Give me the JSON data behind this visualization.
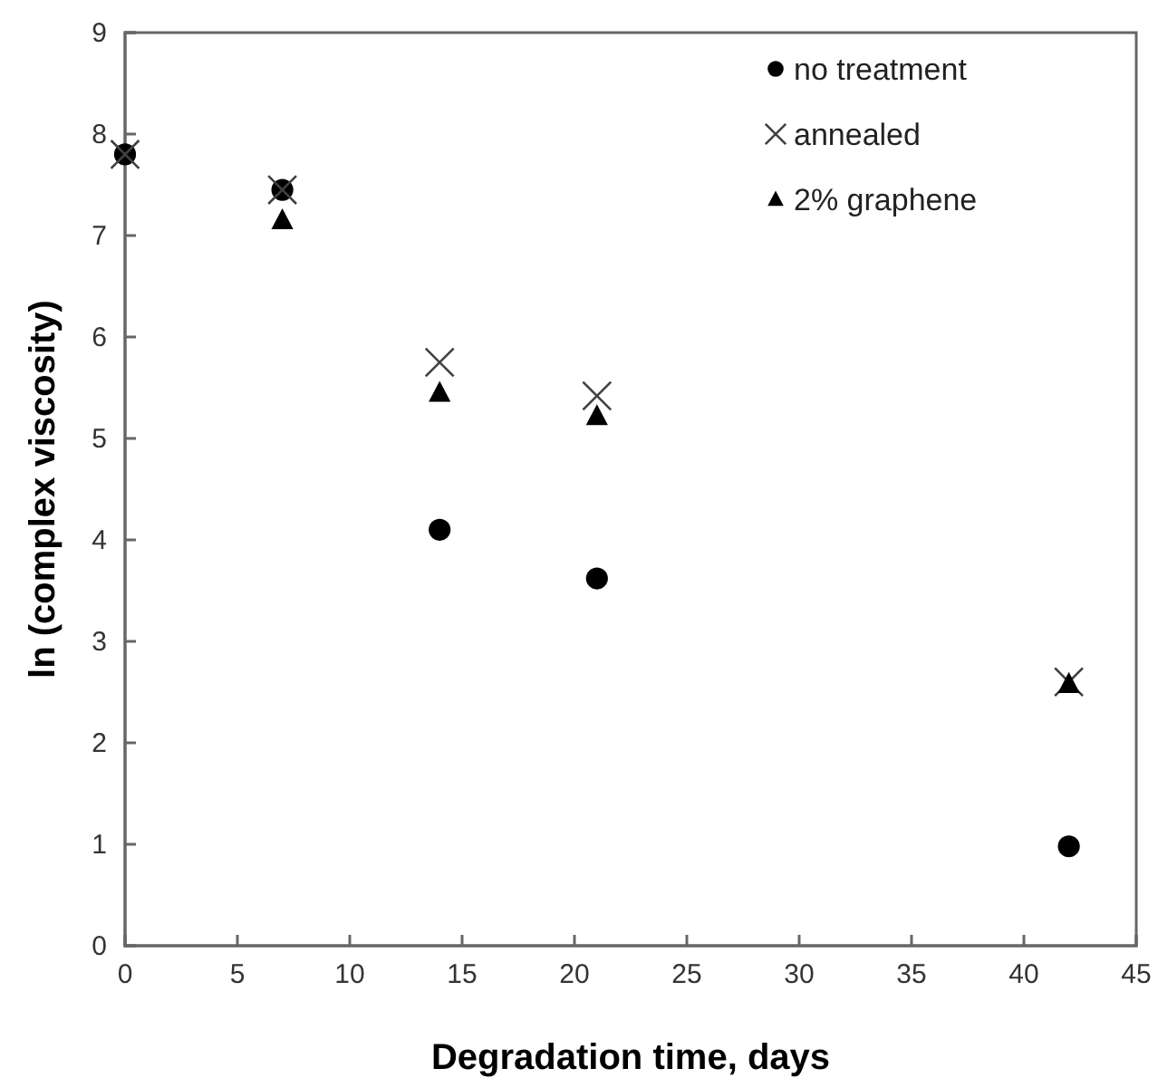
{
  "chart_data": {
    "type": "scatter",
    "xlabel": "Degradation time, days",
    "ylabel": "ln (complex viscosity)",
    "xlim": [
      0,
      45
    ],
    "ylim": [
      0,
      9
    ],
    "xticks": [
      0,
      5,
      10,
      15,
      20,
      25,
      30,
      35,
      40,
      45
    ],
    "yticks": [
      0,
      1,
      2,
      3,
      4,
      5,
      6,
      7,
      8,
      9
    ],
    "grid": false,
    "legend": "top right",
    "x": [
      0,
      7,
      14,
      21,
      42
    ],
    "series": [
      {
        "name": "no treatment",
        "color": "#000000",
        "marker": "circle",
        "values": [
          7.8,
          7.45,
          4.1,
          3.62,
          0.98
        ]
      },
      {
        "name": "annealed",
        "color": "#404040",
        "marker": "cross",
        "values": [
          7.8,
          7.45,
          5.75,
          5.42,
          2.6
        ]
      },
      {
        "name": "2% graphene",
        "color": "#000000",
        "marker": "triangle",
        "values": [
          null,
          7.15,
          5.45,
          5.22,
          2.58
        ]
      }
    ]
  }
}
